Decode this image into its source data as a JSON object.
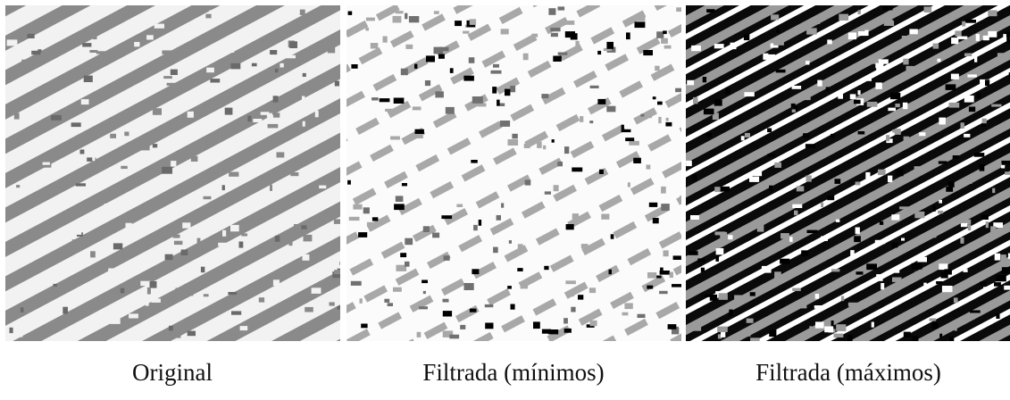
{
  "figure": {
    "panels": [
      {
        "caption": "Original"
      },
      {
        "caption": "Filtrada (mínimos)"
      },
      {
        "caption": "Filtrada (máximos)"
      }
    ]
  }
}
